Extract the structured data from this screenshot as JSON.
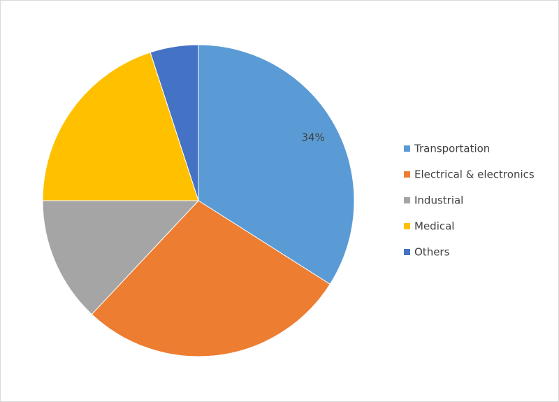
{
  "chart_data": {
    "type": "pie",
    "categories": [
      "Transportation",
      "Electrical & electronics",
      "Industrial",
      "Medical",
      "Others"
    ],
    "values": [
      34,
      28,
      13,
      20,
      5
    ],
    "value_labels": [
      "34%",
      null,
      null,
      null,
      null
    ],
    "colors": [
      "#5b9bd5",
      "#ed7d31",
      "#a5a5a5",
      "#ffc000",
      "#4472c4"
    ],
    "legend": "right"
  }
}
